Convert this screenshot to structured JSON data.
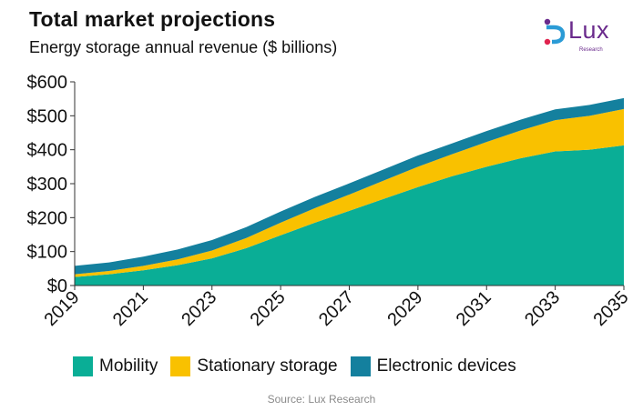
{
  "title": "Total market projections",
  "subtitle": "Energy storage annual revenue ($ billions)",
  "logo": {
    "word": "Lux",
    "sub": "Research",
    "colors": [
      "#6a2a8c",
      "#2b9bd6",
      "#e0234e"
    ]
  },
  "source": "Source: Lux Research",
  "chart_data": {
    "type": "area",
    "stacked": true,
    "title": "Total market projections",
    "subtitle": "Energy storage annual revenue ($ billions)",
    "x": [
      2019,
      2020,
      2021,
      2022,
      2023,
      2024,
      2025,
      2026,
      2027,
      2028,
      2029,
      2030,
      2031,
      2032,
      2033,
      2034,
      2035
    ],
    "x_tick_labels": [
      "2019",
      "2021",
      "2023",
      "2025",
      "2027",
      "2029",
      "2031",
      "2033",
      "2035"
    ],
    "y_tick_labels": [
      "$0",
      "$100",
      "$200",
      "$300",
      "$400",
      "$500",
      "$600"
    ],
    "ylim": [
      0,
      600
    ],
    "grid": false,
    "legend_position": "bottom",
    "series": [
      {
        "name": "Mobility",
        "color": "#0aae96",
        "values": [
          25,
          33,
          45,
          60,
          80,
          110,
          148,
          185,
          220,
          255,
          290,
          322,
          350,
          375,
          395,
          400,
          413
        ]
      },
      {
        "name": "Stationary storage",
        "color": "#f9c100",
        "values": [
          8,
          10,
          13,
          17,
          23,
          30,
          37,
          43,
          48,
          54,
          60,
          65,
          73,
          82,
          92,
          100,
          107
        ]
      },
      {
        "name": "Electronic devices",
        "color": "#14809e",
        "values": [
          25,
          25,
          27,
          29,
          31,
          32,
          33,
          33,
          33,
          33,
          33,
          32,
          32,
          32,
          32,
          32,
          32
        ]
      }
    ]
  }
}
